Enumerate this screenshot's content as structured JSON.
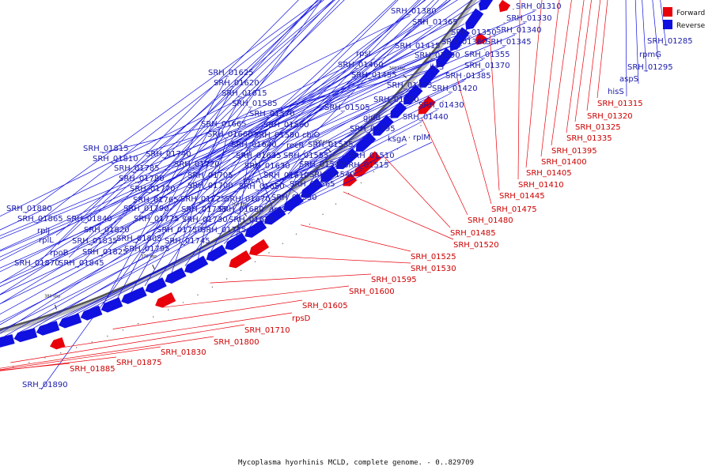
{
  "legend": {
    "forward": "Forward",
    "reverse": "Reverse"
  },
  "caption": "Mycoplasma hyorhinis MCLD, complete genome. - 0..829709",
  "colors": {
    "forward": "#e8000b",
    "reverse": "#1010e0",
    "backbone": "#555555"
  },
  "ticks": [
    "300 kbp",
    "310 kbp",
    "320 kbp",
    "330 kbp",
    "340 kbp",
    "350 kbp",
    "360 kbp",
    "370 kbp",
    "380 kbp",
    "390 kbp",
    "400 kbp",
    "410 kbp"
  ],
  "reverse_labels": [
    "SRH_01310",
    "SRH_01330",
    "SRH_01380",
    "SRH_01365",
    "SRH_01340",
    "SRH_01350",
    "SRH_01360",
    "SRH_01345",
    "SRH_01415",
    "SRH_01390",
    "SRH_01355",
    "ileS",
    "SRH_01370",
    "rpsI",
    "SRH_01385",
    "SRH_01460",
    "SRH_01455",
    "SRH_01435",
    "SRH_01420",
    "SRH_01450",
    "SRH_01430",
    "SRH_01505",
    "gidB",
    "SRH_01440",
    "SRH_01495",
    "rplM",
    "ksgA",
    "SRH_01510",
    "SRH_01515",
    "SRH_01625",
    "SRH_01620",
    "SRH_01615",
    "SRH_01585",
    "SRH_01570",
    "SRH_01665",
    "SRH_01560",
    "SRH_01660",
    "SRH_01580",
    "cbiO",
    "SRH_01640",
    "recR",
    "SRH_01535",
    "SRH_01635",
    "SRH_01555",
    "SRH_01630",
    "SRH_01545",
    "SRH_01540",
    "SRH_01610",
    "hrcA",
    "SRH_01650",
    "SRH_01565",
    "SRH_01590",
    "argS",
    "SRH_01670",
    "SRH_01680",
    "SRH_01675",
    "SRH_01815",
    "SRH_01810",
    "SRH_01740",
    "SRH_01785",
    "SRH_01720",
    "SRH_01780",
    "SRH_01705",
    "SRH_01700",
    "SRH_01770",
    "SRH_01765",
    "SRH_01725",
    "SRH_01735",
    "SRH_01790",
    "SRH_01775",
    "SRH_01730",
    "SRH_01715",
    "SRH_01750",
    "SRH_01745",
    "SRH_01805",
    "SRH_01795",
    "SRH_01880",
    "SRH_01865",
    "rplJ",
    "SRH_01840",
    "SRH_01820",
    "rplL",
    "SRH_01835",
    "SRH_01825",
    "rpoB",
    "SRH_01870",
    "SRH_01845",
    "SRH_01285",
    "rpmG",
    "SRH_01295",
    "aspS",
    "hisS",
    "SRH_01890"
  ],
  "forward_labels": [
    "SRH_01315",
    "SRH_01320",
    "SRH_01325",
    "SRH_01335",
    "SRH_01395",
    "SRH_01400",
    "SRH_01405",
    "SRH_01410",
    "SRH_01445",
    "SRH_01475",
    "SRH_01480",
    "SRH_01485",
    "SRH_01520",
    "SRH_01525",
    "SRH_01530",
    "SRH_01595",
    "SRH_01600",
    "SRH_01605",
    "rpsD",
    "SRH_01710",
    "SRH_01800",
    "SRH_01830",
    "SRH_01875",
    "SRH_01885"
  ]
}
